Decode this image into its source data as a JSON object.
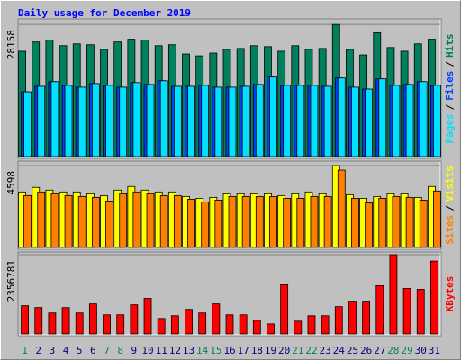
{
  "title": "Daily usage for December 2019",
  "legend_separator": "/",
  "chart_data": [
    {
      "type": "bar",
      "ylim": [
        0,
        29150
      ],
      "yticks": [
        28158
      ],
      "series": [
        {
          "name": "Hits",
          "color": "#00805c",
          "values": [
            22450,
            24420,
            24810,
            23630,
            24020,
            23830,
            22840,
            24420,
            25010,
            24810,
            23630,
            23830,
            21860,
            21460,
            22050,
            22840,
            23040,
            23630,
            23430,
            22450,
            23630,
            22840,
            23040,
            28158,
            22840,
            21660,
            26390,
            23240,
            22450,
            24020,
            25010
          ]
        },
        {
          "name": "Files",
          "color": "#0040ff",
          "values": [
            13790,
            14970,
            15960,
            15170,
            14780,
            15560,
            15170,
            14780,
            15760,
            15370,
            16150,
            14970,
            14970,
            15170,
            14780,
            14780,
            14970,
            15370,
            16940,
            15170,
            15170,
            15170,
            14970,
            16740,
            14780,
            14380,
            16550,
            15170,
            15370,
            15960,
            15170
          ]
        },
        {
          "name": "Pages",
          "color": "#00e0ff",
          "values": [
            13790,
            14970,
            15960,
            15170,
            14780,
            15560,
            15170,
            14780,
            15760,
            15370,
            16150,
            14970,
            14970,
            15170,
            14780,
            14780,
            14970,
            15370,
            16940,
            15170,
            15170,
            15170,
            14970,
            16740,
            14780,
            14380,
            16550,
            15170,
            15370,
            15960,
            15170
          ]
        }
      ]
    },
    {
      "type": "bar",
      "ylim": [
        0,
        4700
      ],
      "yticks": [
        4598
      ],
      "series": [
        {
          "name": "Visits",
          "color": "#ffff00",
          "values": [
            3117,
            3373,
            3219,
            3117,
            3117,
            3015,
            2913,
            3219,
            3424,
            3219,
            3117,
            3117,
            2862,
            2759,
            2811,
            3015,
            3015,
            3015,
            3015,
            2913,
            3015,
            3117,
            3015,
            4598,
            2964,
            2759,
            2862,
            3015,
            3015,
            2811,
            3424
          ]
        },
        {
          "name": "Sites",
          "color": "#ff8000",
          "values": [
            2913,
            3117,
            3015,
            2913,
            2862,
            2811,
            2606,
            3015,
            3117,
            3015,
            2913,
            2913,
            2708,
            2555,
            2657,
            2862,
            2862,
            2862,
            2862,
            2759,
            2759,
            2862,
            2862,
            4344,
            2759,
            2504,
            2759,
            2862,
            2811,
            2657,
            3168
          ]
        }
      ]
    },
    {
      "type": "bar",
      "ylim": [
        0,
        2384000
      ],
      "yticks": [
        2356781
      ],
      "categories": [
        "1",
        "2",
        "3",
        "4",
        "5",
        "6",
        "7",
        "8",
        "9",
        "10",
        "11",
        "12",
        "13",
        "14",
        "15",
        "16",
        "17",
        "18",
        "19",
        "20",
        "21",
        "22",
        "23",
        "24",
        "25",
        "26",
        "27",
        "28",
        "29",
        "30",
        "31"
      ],
      "category_colors": [
        "#00805c",
        "#000080",
        "#000080",
        "#000080",
        "#000080",
        "#000080",
        "#00805c",
        "#00805c",
        "#000080",
        "#000080",
        "#000080",
        "#000080",
        "#000080",
        "#00805c",
        "#00805c",
        "#000080",
        "#000080",
        "#000080",
        "#000080",
        "#000080",
        "#00805c",
        "#00805c",
        "#000080",
        "#000080",
        "#000080",
        "#000080",
        "#000080",
        "#00805c",
        "#00805c",
        "#000080",
        "#000080"
      ],
      "series": [
        {
          "name": "KBytes",
          "color": "#ff0000",
          "values": [
            839800,
            785600,
            623100,
            785600,
            623100,
            894000,
            568900,
            568900,
            866900,
            1056500,
            460500,
            541800,
            731400,
            623100,
            894000,
            568900,
            568900,
            406400,
            298000,
            1462900,
            379300,
            541800,
            541800,
            812700,
            975200,
            975200,
            1435800,
            2356781,
            1354500,
            1327400,
            2167200
          ]
        }
      ]
    }
  ]
}
